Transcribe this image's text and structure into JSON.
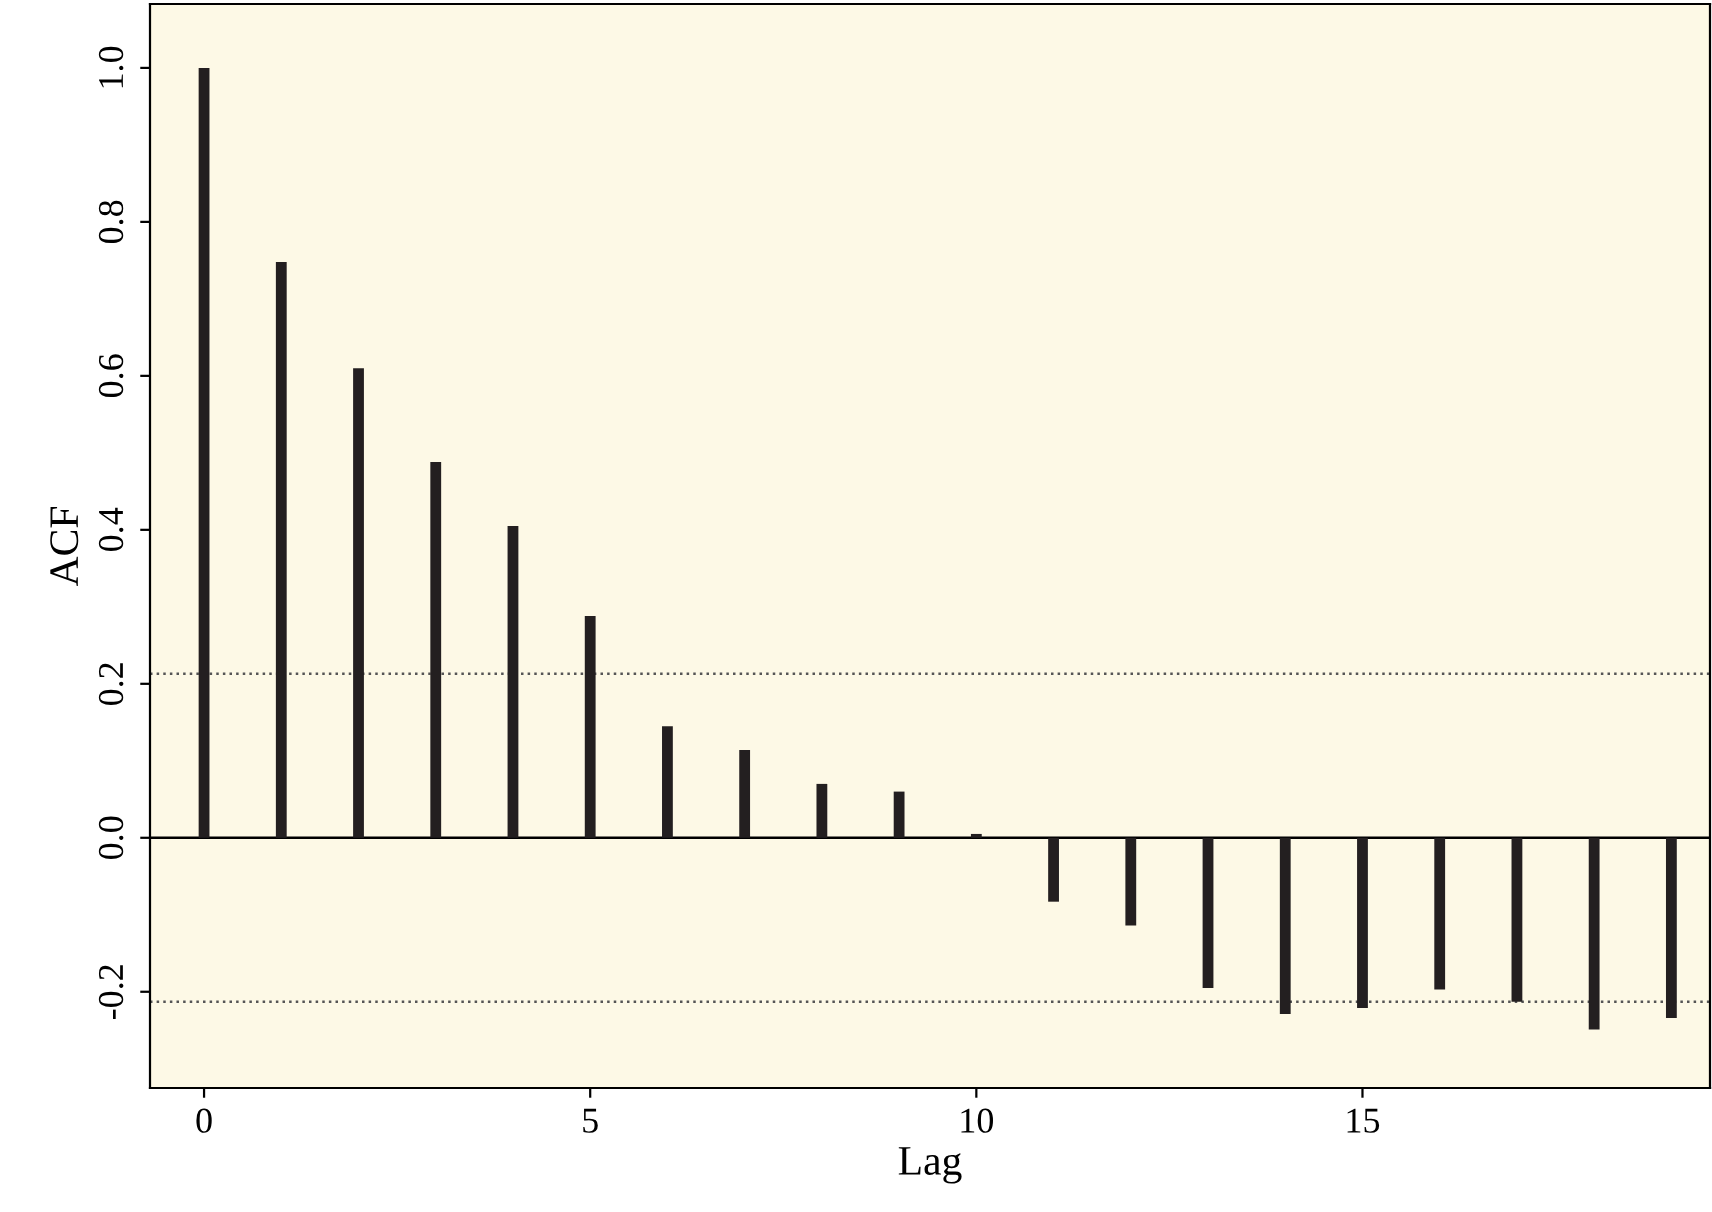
{
  "chart_data": {
    "type": "bar",
    "xlabel": "Lag",
    "ylabel": "ACF",
    "x": [
      0,
      1,
      2,
      3,
      4,
      5,
      6,
      7,
      8,
      9,
      10,
      11,
      12,
      13,
      14,
      15,
      16,
      17,
      18,
      19
    ],
    "values": [
      1.0,
      0.748,
      0.61,
      0.488,
      0.405,
      0.288,
      0.145,
      0.114,
      0.07,
      0.06,
      0.005,
      -0.083,
      -0.114,
      -0.195,
      -0.229,
      -0.221,
      -0.197,
      -0.213,
      -0.249,
      -0.234
    ],
    "color": "#231f20",
    "xlim": [
      -0.7,
      19.5
    ],
    "xticks": [
      0,
      5,
      10,
      15
    ],
    "ylim": [
      -0.325,
      1.083
    ],
    "yticks": [
      {
        "value": -0.2,
        "label": "-0.2"
      },
      {
        "value": 0,
        "label": "0.0"
      },
      {
        "value": 0.2,
        "label": "0.2"
      },
      {
        "value": 0.4,
        "label": "0.4"
      },
      {
        "value": 0.6,
        "label": "0.6"
      },
      {
        "value": 0.8,
        "label": "0.8"
      },
      {
        "value": 1.0,
        "label": "1.0"
      }
    ],
    "ref_lines": [
      {
        "axis": "y",
        "value": 0,
        "color": "#000000",
        "line_style": "solid"
      },
      {
        "axis": "y",
        "value": 0.213,
        "color": "#555555",
        "line_style": "dotted"
      },
      {
        "axis": "y",
        "value": -0.213,
        "color": "#555555",
        "line_style": "dotted"
      }
    ],
    "grid": false,
    "legend": false
  }
}
